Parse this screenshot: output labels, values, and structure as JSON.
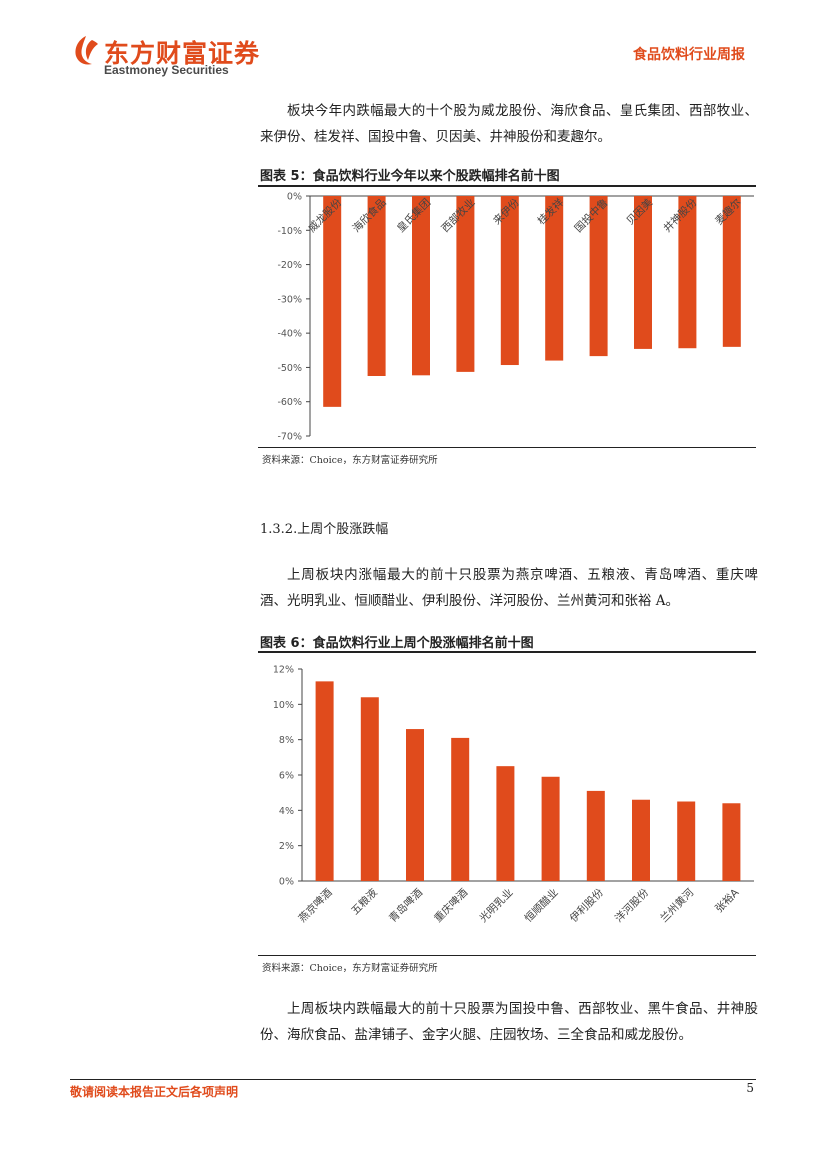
{
  "header": {
    "logo_cn": "东方财富证券",
    "logo_en": "Eastmoney Securities",
    "report_name": "食品饮料行业周报"
  },
  "paragraph_1": "板块今年内跌幅最大的十个股为威龙股份、海欣食品、皇氏集团、西部牧业、来伊份、桂发祥、国投中鲁、贝因美、井神股份和麦趣尔。",
  "figure5": {
    "title": "图表 5：食品饮料行业今年以来个股跌幅排名前十图",
    "source": "资料来源：Choice，东方财富证券研究所"
  },
  "section_heading": "1.3.2.上周个股涨跌幅",
  "paragraph_2": "上周板块内涨幅最大的前十只股票为燕京啤酒、五粮液、青岛啤酒、重庆啤酒、光明乳业、恒顺醋业、伊利股份、洋河股份、兰州黄河和张裕 A。",
  "figure6": {
    "title": "图表 6：食品饮料行业上周个股涨幅排名前十图",
    "source": "资料来源：Choice，东方财富证券研究所"
  },
  "paragraph_3": "上周板块内跌幅最大的前十只股票为国投中鲁、西部牧业、黑牛食品、井神股份、海欣食品、盐津铺子、金字火腿、庄园牧场、三全食品和威龙股份。",
  "footer": {
    "note": "敬请阅读本报告正文后各项声明",
    "page_number": "5"
  },
  "colors": {
    "brand": "#e04b1c",
    "bar": "#e04b1c"
  },
  "chart_data": [
    {
      "type": "bar",
      "categories": [
        "威龙股份",
        "海欣食品",
        "皇氏集团",
        "西部牧业",
        "来伊份",
        "桂发祥",
        "国投中鲁",
        "贝因美",
        "井神股份",
        "麦趣尔"
      ],
      "values": [
        -61.5,
        -52.5,
        -52.3,
        -51.3,
        -49.3,
        -48.0,
        -46.7,
        -44.6,
        -44.4,
        -44.0
      ],
      "y_ticks": [
        "0%",
        "-10%",
        "-20%",
        "-30%",
        "-40%",
        "-50%",
        "-60%",
        "-70%"
      ],
      "ylim": [
        -70,
        0
      ],
      "unit": "%",
      "grid": false,
      "legend": "none"
    },
    {
      "type": "bar",
      "categories": [
        "燕京啤酒",
        "五粮液",
        "青岛啤酒",
        "重庆啤酒",
        "光明乳业",
        "恒顺醋业",
        "伊利股份",
        "洋河股份",
        "兰州黄河",
        "张裕A"
      ],
      "values": [
        11.3,
        10.4,
        8.6,
        8.1,
        6.5,
        5.9,
        5.1,
        4.6,
        4.5,
        4.4
      ],
      "y_ticks": [
        "0%",
        "2%",
        "4%",
        "6%",
        "8%",
        "10%",
        "12%"
      ],
      "ylim": [
        0,
        12
      ],
      "unit": "%",
      "grid": false,
      "legend": "none"
    }
  ]
}
